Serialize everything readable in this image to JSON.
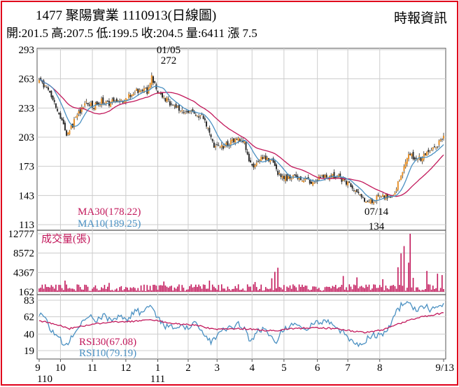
{
  "header": {
    "title": "1477  聚陽實業 1110913(日線圖)",
    "source": "時報資訊",
    "quote": "開:201.5 高:207.5 低:199.5 收:204.5 量:6411 漲 7.5"
  },
  "colors": {
    "frame": "#e0001b",
    "candle": "#2b2b2b",
    "candle_up": "#e8922b",
    "volume": "#c2185b",
    "ma30": "#c2185b",
    "ma10": "#4a90c2",
    "rsi30": "#c2185b",
    "rsi10": "#4a90c2",
    "grid": "#cccccc"
  },
  "chart_data": [
    {
      "type": "candlestick",
      "title": "",
      "ylim": [
        113,
        293
      ],
      "yticks": [
        "293",
        "263",
        "233",
        "203",
        "173",
        "143",
        "113"
      ],
      "annotations": [
        {
          "date": "01/05",
          "value": "272"
        },
        {
          "date": "07/14",
          "value": "134"
        }
      ],
      "legend": [
        {
          "label": "MA30(178.22)",
          "series": "ma30"
        },
        {
          "label": "MA10(189.25)",
          "series": "ma10"
        }
      ],
      "price_anchors": [
        [
          0,
          260
        ],
        [
          5,
          254
        ],
        [
          10,
          238
        ],
        [
          15,
          220
        ],
        [
          18,
          207
        ],
        [
          22,
          216
        ],
        [
          27,
          230
        ],
        [
          31,
          237
        ],
        [
          36,
          235
        ],
        [
          41,
          241
        ],
        [
          46,
          238
        ],
        [
          51,
          242
        ],
        [
          56,
          239
        ],
        [
          61,
          249
        ],
        [
          66,
          252
        ],
        [
          71,
          250
        ],
        [
          74,
          265
        ],
        [
          77,
          252
        ],
        [
          82,
          244
        ],
        [
          87,
          236
        ],
        [
          92,
          232
        ],
        [
          97,
          228
        ],
        [
          102,
          228
        ],
        [
          107,
          224
        ],
        [
          110,
          215
        ],
        [
          114,
          196
        ],
        [
          118,
          192
        ],
        [
          122,
          194
        ],
        [
          127,
          198
        ],
        [
          131,
          202
        ],
        [
          135,
          196
        ],
        [
          138,
          180
        ],
        [
          141,
          172
        ],
        [
          145,
          180
        ],
        [
          149,
          182
        ],
        [
          153,
          178
        ],
        [
          157,
          166
        ],
        [
          161,
          160
        ],
        [
          165,
          160
        ],
        [
          169,
          162
        ],
        [
          173,
          160
        ],
        [
          177,
          157
        ],
        [
          181,
          158
        ],
        [
          185,
          162
        ],
        [
          189,
          162
        ],
        [
          193,
          163
        ],
        [
          197,
          162
        ],
        [
          201,
          158
        ],
        [
          205,
          153
        ],
        [
          209,
          145
        ],
        [
          213,
          140
        ],
        [
          217,
          136
        ],
        [
          221,
          140
        ],
        [
          225,
          142
        ],
        [
          229,
          142
        ],
        [
          233,
          142
        ],
        [
          235,
          152
        ],
        [
          238,
          165
        ],
        [
          241,
          178
        ],
        [
          244,
          186
        ],
        [
          248,
          180
        ],
        [
          252,
          182
        ],
        [
          256,
          188
        ],
        [
          260,
          191
        ],
        [
          263,
          197
        ],
        [
          266,
          204.5
        ]
      ]
    },
    {
      "type": "bar",
      "title": "成交量(張)",
      "ylim": [
        162,
        12777
      ],
      "yticks": [
        "12777",
        "8572",
        "4367",
        "162"
      ],
      "spikes": [
        [
          17,
          2600
        ],
        [
          46,
          2100
        ],
        [
          82,
          2400
        ],
        [
          112,
          2600
        ],
        [
          142,
          2300
        ],
        [
          153,
          3100
        ],
        [
          155,
          4500
        ],
        [
          157,
          5400
        ],
        [
          200,
          3600
        ],
        [
          209,
          3300
        ],
        [
          226,
          2900
        ],
        [
          236,
          5500
        ],
        [
          238,
          8500
        ],
        [
          240,
          10100
        ],
        [
          243,
          6500
        ],
        [
          244,
          12777
        ],
        [
          246,
          3200
        ],
        [
          255,
          4700
        ],
        [
          262,
          4100
        ],
        [
          265,
          3800
        ]
      ]
    },
    {
      "type": "line",
      "title": "",
      "ylim": [
        19,
        83
      ],
      "yticks": [
        "83",
        "62",
        "40",
        "19"
      ],
      "legend": [
        {
          "label": "RSI30(67.08)",
          "series": "rsi30"
        },
        {
          "label": "RSI10(79.19)",
          "series": "rsi10"
        }
      ],
      "rsi10_anchors": [
        [
          0,
          64
        ],
        [
          4,
          60
        ],
        [
          8,
          45
        ],
        [
          12,
          38
        ],
        [
          16,
          28
        ],
        [
          19,
          26
        ],
        [
          23,
          42
        ],
        [
          28,
          55
        ],
        [
          33,
          62
        ],
        [
          38,
          58
        ],
        [
          43,
          64
        ],
        [
          48,
          56
        ],
        [
          53,
          66
        ],
        [
          58,
          58
        ],
        [
          63,
          70
        ],
        [
          68,
          66
        ],
        [
          72,
          74
        ],
        [
          75,
          72
        ],
        [
          78,
          60
        ],
        [
          83,
          50
        ],
        [
          88,
          48
        ],
        [
          93,
          52
        ],
        [
          98,
          46
        ],
        [
          103,
          55
        ],
        [
          108,
          42
        ],
        [
          113,
          30
        ],
        [
          117,
          38
        ],
        [
          121,
          44
        ],
        [
          126,
          48
        ],
        [
          131,
          52
        ],
        [
          135,
          45
        ],
        [
          139,
          30
        ],
        [
          143,
          42
        ],
        [
          147,
          46
        ],
        [
          151,
          40
        ],
        [
          156,
          32
        ],
        [
          160,
          45
        ],
        [
          165,
          52
        ],
        [
          170,
          50
        ],
        [
          175,
          46
        ],
        [
          180,
          52
        ],
        [
          185,
          56
        ],
        [
          190,
          55
        ],
        [
          195,
          50
        ],
        [
          200,
          42
        ],
        [
          205,
          30
        ],
        [
          210,
          25
        ],
        [
          214,
          30
        ],
        [
          219,
          40
        ],
        [
          224,
          38
        ],
        [
          229,
          44
        ],
        [
          234,
          65
        ],
        [
          238,
          76
        ],
        [
          242,
          82
        ],
        [
          246,
          70
        ],
        [
          250,
          72
        ],
        [
          254,
          76
        ],
        [
          258,
          70
        ],
        [
          262,
          76
        ],
        [
          266,
          79.19
        ]
      ],
      "rsi30_anchors": [
        [
          0,
          57
        ],
        [
          10,
          53
        ],
        [
          20,
          47
        ],
        [
          30,
          51
        ],
        [
          45,
          55
        ],
        [
          60,
          56
        ],
        [
          75,
          58
        ],
        [
          90,
          53
        ],
        [
          105,
          51
        ],
        [
          115,
          46
        ],
        [
          125,
          47
        ],
        [
          135,
          47
        ],
        [
          145,
          45
        ],
        [
          155,
          44
        ],
        [
          165,
          47
        ],
        [
          180,
          48
        ],
        [
          195,
          47
        ],
        [
          205,
          44
        ],
        [
          215,
          42
        ],
        [
          225,
          45
        ],
        [
          235,
          52
        ],
        [
          245,
          59
        ],
        [
          255,
          63
        ],
        [
          266,
          67.08
        ]
      ]
    }
  ],
  "time_axis": {
    "labels": [
      "9",
      "10",
      "11",
      "12",
      "1",
      "2",
      "3",
      "4",
      "5",
      "6",
      "7",
      "8",
      "9/13"
    ],
    "positions": [
      0,
      14,
      35,
      57,
      78,
      98,
      117,
      140,
      161,
      183,
      203,
      224,
      266
    ],
    "years": [
      {
        "label": "110",
        "at": 0
      },
      {
        "label": "111",
        "at": 78
      }
    ]
  }
}
